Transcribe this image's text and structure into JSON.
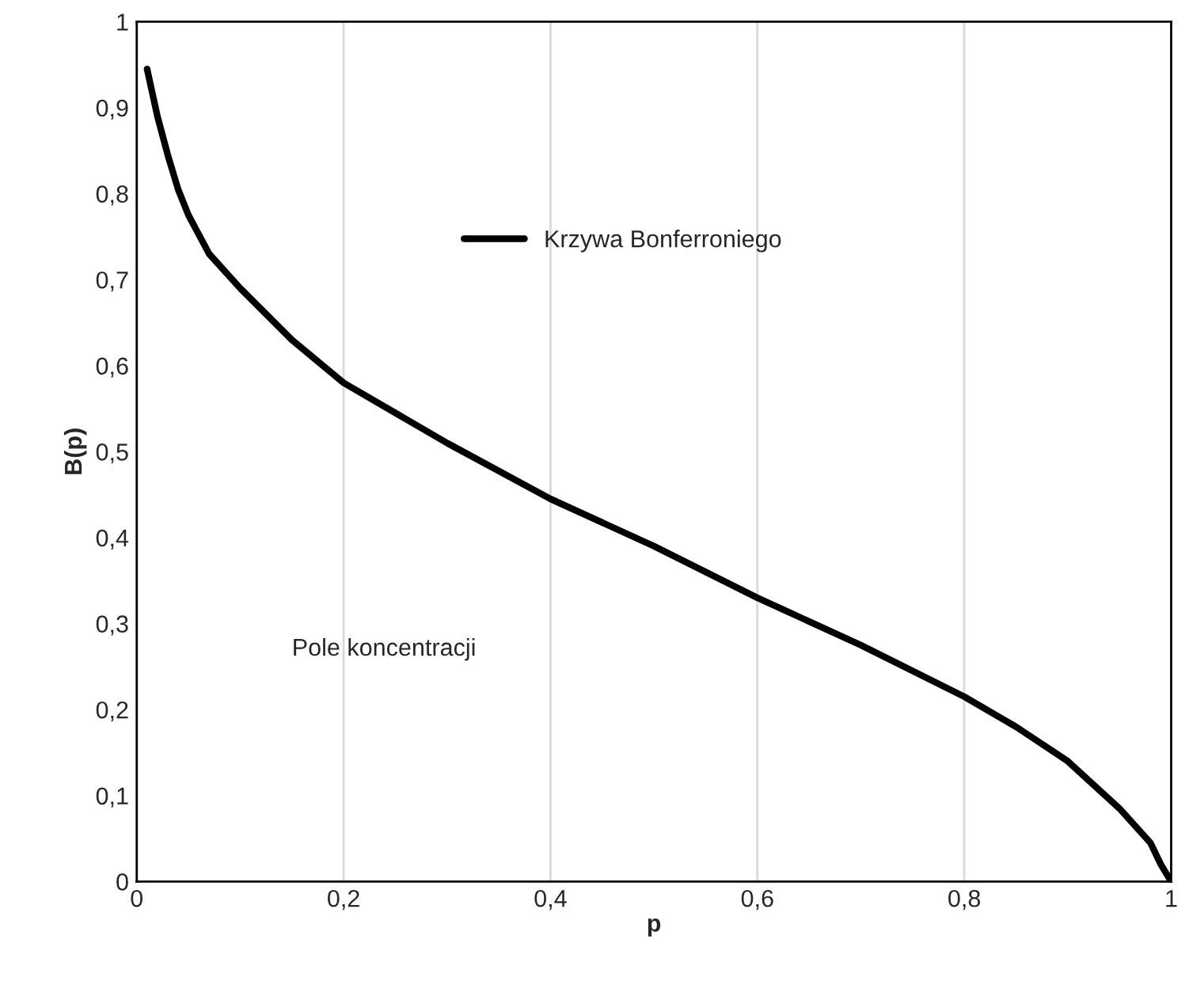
{
  "chart_data": {
    "type": "line",
    "xlabel": "p",
    "ylabel": "B(p)",
    "x": [
      0.01,
      0.02,
      0.03,
      0.04,
      0.05,
      0.07,
      0.1,
      0.15,
      0.2,
      0.3,
      0.4,
      0.5,
      0.6,
      0.7,
      0.8,
      0.85,
      0.9,
      0.95,
      0.98,
      0.99,
      1.0
    ],
    "series": [
      {
        "name": "Krzywa Bonferroniego",
        "color": "#000000",
        "values": [
          0.945,
          0.89,
          0.845,
          0.805,
          0.775,
          0.73,
          0.69,
          0.63,
          0.58,
          0.51,
          0.445,
          0.39,
          0.33,
          0.275,
          0.215,
          0.18,
          0.14,
          0.085,
          0.045,
          0.02,
          0.0
        ]
      }
    ],
    "xlim": [
      0,
      1
    ],
    "ylim": [
      0,
      1
    ],
    "xticks": [
      0,
      {
        "value": 0.2,
        "label": "0,2"
      },
      {
        "value": 0.4,
        "label": "0,4"
      },
      {
        "value": 0.6,
        "label": "0,6"
      },
      {
        "value": 0.8,
        "label": "0,8"
      },
      1
    ],
    "yticks": [
      0,
      {
        "value": 0.1,
        "label": "0,1"
      },
      {
        "value": 0.2,
        "label": "0,2"
      },
      {
        "value": 0.3,
        "label": "0,3"
      },
      {
        "value": 0.4,
        "label": "0,4"
      },
      {
        "value": 0.5,
        "label": "0,5"
      },
      {
        "value": 0.6,
        "label": "0,6"
      },
      {
        "value": 0.7,
        "label": "0,7"
      },
      {
        "value": 0.8,
        "label": "0,8"
      },
      {
        "value": 0.9,
        "label": "0,9"
      },
      1
    ],
    "annotations": [
      "Pole koncentracji"
    ],
    "grid": "x",
    "legend": "top",
    "marker": "none",
    "line_style": "solid"
  }
}
